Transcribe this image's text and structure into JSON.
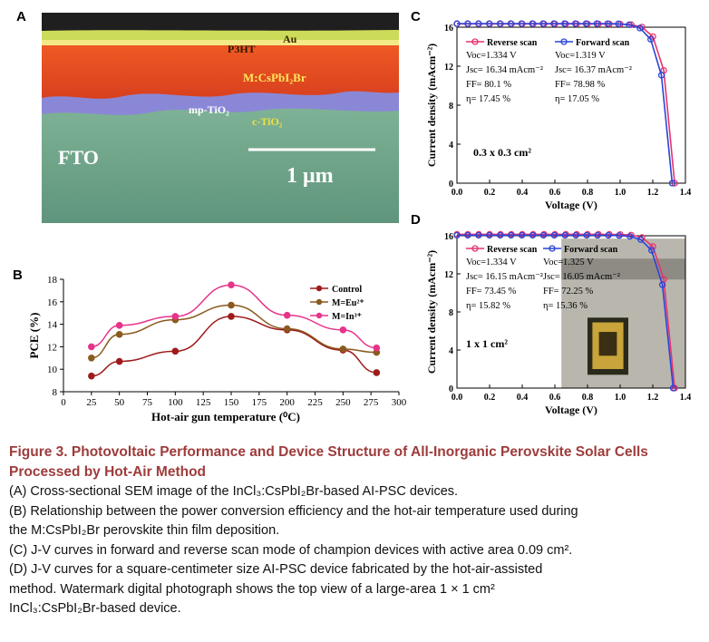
{
  "panels": {
    "a": {
      "letter": "A",
      "labels": {
        "au": "Au",
        "p3ht": "P3HT",
        "perovskite": "M:CsPbI₂Br",
        "mp_tio2": "mp-TiO₂",
        "c_tio2": "c-TiO₂",
        "fto": "FTO",
        "scale": "1 μm"
      },
      "colors": {
        "au": "#d7e36a",
        "p3ht": "#f2ea86",
        "perovskite": "#e6461f",
        "tio2": "#8a88d6",
        "fto": "#6fa58a",
        "background": "#1a1a1a"
      }
    },
    "b": {
      "letter": "B",
      "chart_data": {
        "type": "line",
        "xlabel": "Hot-air gun temperature (⁰C)",
        "ylabel": "PCE (%)",
        "x": [
          25,
          50,
          100,
          150,
          200,
          250,
          280
        ],
        "xlim": [
          0,
          300
        ],
        "ylim": [
          8,
          18
        ],
        "xticks": [
          "0",
          "25",
          "50",
          "75",
          "100",
          "125",
          "150",
          "175",
          "200",
          "225",
          "250",
          "275",
          "300"
        ],
        "yticks": [
          "8",
          "10",
          "12",
          "14",
          "16",
          "18"
        ],
        "legend_position": "top-right",
        "series": [
          {
            "name": "Control",
            "color": "#9e1b1b",
            "values": [
              9.4,
              10.7,
              11.6,
              14.7,
              13.5,
              11.7,
              9.7
            ]
          },
          {
            "name": "M=Eu²⁺",
            "color": "#8a5a1e",
            "values": [
              11.0,
              13.1,
              14.4,
              15.7,
              13.6,
              11.8,
              11.5
            ]
          },
          {
            "name": "M=In³⁺",
            "color": "#e8338a",
            "values": [
              12.0,
              13.9,
              14.7,
              17.5,
              14.8,
              13.5,
              11.9
            ]
          }
        ]
      }
    },
    "c": {
      "letter": "C",
      "chart_data": {
        "type": "line",
        "xlabel": "Voltage (V)",
        "ylabel": "Current density (mAcm⁻²)",
        "xlim": [
          0,
          1.4
        ],
        "ylim": [
          0,
          16
        ],
        "xticks": [
          "0.0",
          "0.2",
          "0.4",
          "0.6",
          "0.8",
          "1.0",
          "1.2",
          "1.4"
        ],
        "yticks": [
          "0",
          "4",
          "8",
          "12",
          "16"
        ],
        "area_label": "0.3 x 0.3 cm²",
        "series": [
          {
            "name": "Reverse scan",
            "color": "#e8336e",
            "voc": 1.334,
            "jsc": 16.34,
            "params": [
              "Voc=1.334 V",
              "Jsc= 16.34 mAcm⁻²",
              "FF= 80.1 %",
              "η= 17.45 %"
            ]
          },
          {
            "name": "Forward scan",
            "color": "#2a45d8",
            "voc": 1.319,
            "jsc": 16.37,
            "params": [
              "Voc=1.319 V",
              "Jsc= 16.37 mAcm⁻²",
              "FF= 78.98 %",
              "η= 17.05 %"
            ]
          }
        ]
      }
    },
    "d": {
      "letter": "D",
      "chart_data": {
        "type": "line",
        "xlabel": "Voltage (V)",
        "ylabel": "Current density (mAcm⁻²)",
        "xlim": [
          0,
          1.4
        ],
        "ylim": [
          0,
          16
        ],
        "xticks": [
          "0.0",
          "0.2",
          "0.4",
          "0.6",
          "0.8",
          "1.0",
          "1.2",
          "1.4"
        ],
        "yticks": [
          "0",
          "4",
          "8",
          "12",
          "16"
        ],
        "area_label": "1 x 1 cm²",
        "series": [
          {
            "name": "Reverse scan",
            "color": "#e8336e",
            "voc": 1.334,
            "jsc": 16.15,
            "params": [
              "Voc=1.334 V",
              "Jsc= 16.15 mAcm⁻²",
              "FF= 73.45 %",
              "η= 15.82 %"
            ]
          },
          {
            "name": "Forward scan",
            "color": "#2a45d8",
            "voc": 1.325,
            "jsc": 16.05,
            "params": [
              "Voc=1.325 V",
              "Jsc= 16.05 mAcm⁻²",
              "FF= 72.25 %",
              "η= 15.36 %"
            ]
          }
        ]
      }
    }
  },
  "caption": {
    "title_line1": "Figure 3.  Photovoltaic Performance and Device Structure of All-Inorganic Perovskite Solar Cells",
    "title_line2": "Processed by Hot-Air Method",
    "line_a": "(A) Cross-sectional SEM image of the InCl₃:CsPbI₂Br-based AI-PSC devices.",
    "line_b1": "(B) Relationship between the power conversion efficiency and the hot-air temperature used during",
    "line_b2": "the M:CsPbI₂Br perovskite thin film deposition.",
    "line_c": "(C) J-V curves in forward and reverse scan mode of champion devices with active area 0.09 cm².",
    "line_d1": "(D) J-V curves for a square-centimeter size AI-PSC device fabricated by the hot-air-assisted",
    "line_d2": "method. Watermark digital photograph shows the top view of a large-area 1 × 1 cm²",
    "line_d3": "InCl₃:CsPbI₂Br-based device."
  }
}
